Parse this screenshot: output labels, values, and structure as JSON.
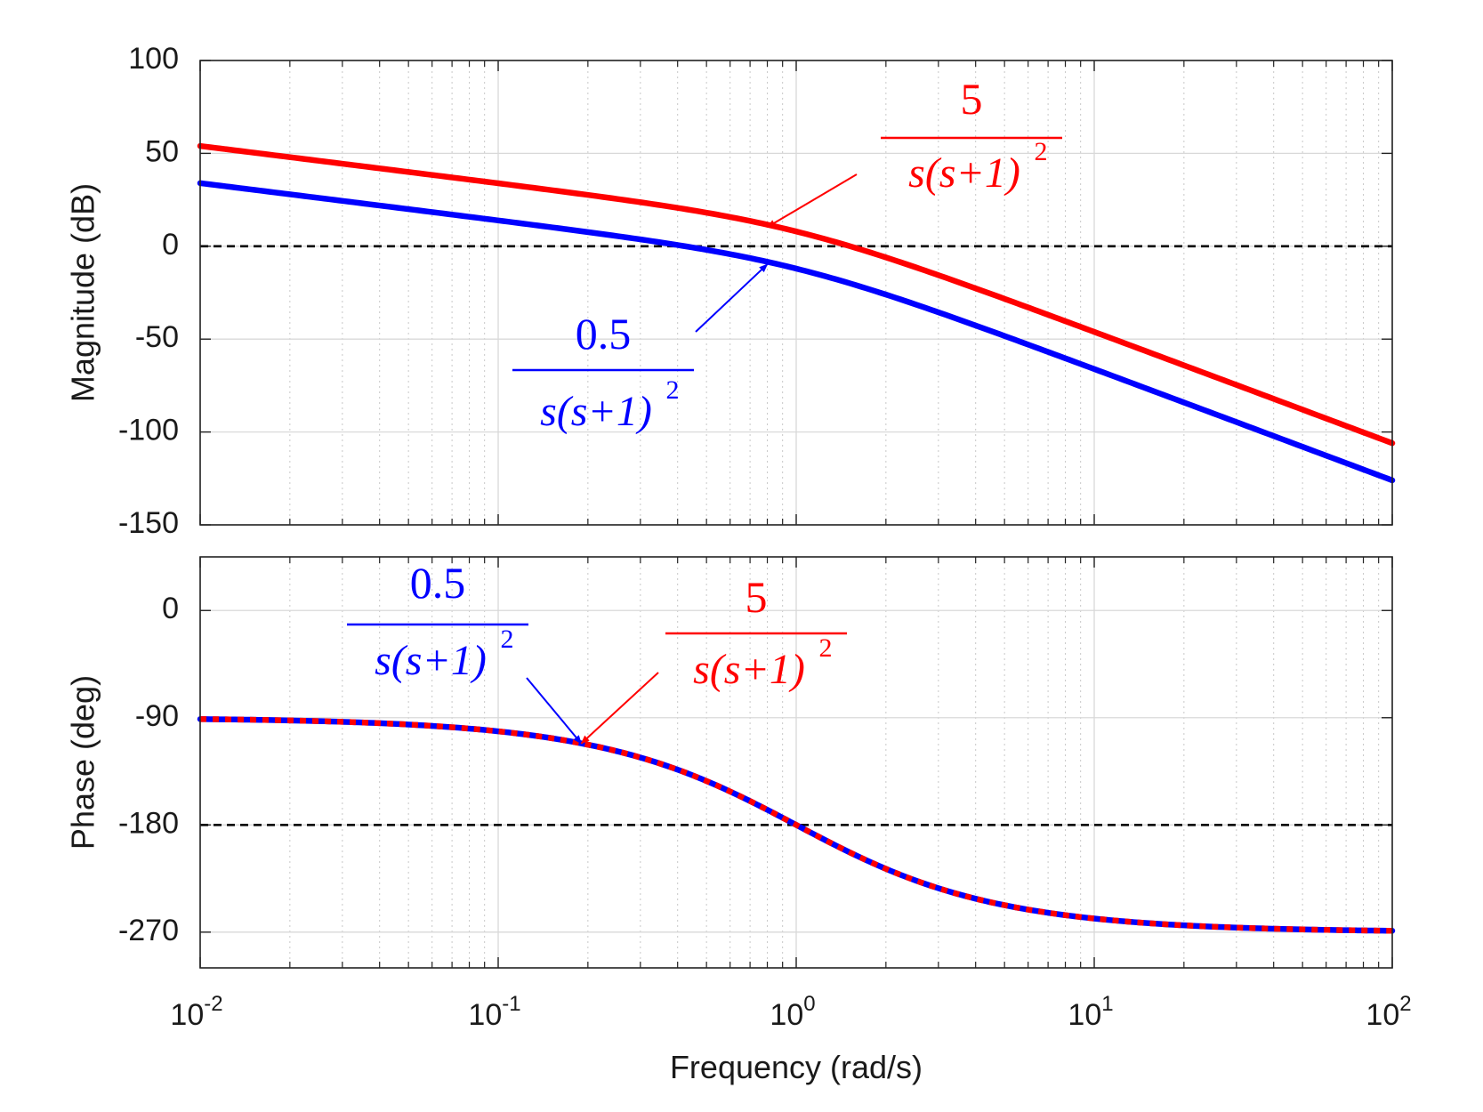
{
  "chart_data": {
    "type": "line",
    "subtype": "bode",
    "xlabel": "Frequency  (rad/s)",
    "xscale": "log",
    "xlim": [
      0.01,
      100
    ],
    "x_tick_labels": [
      {
        "base": "10",
        "exp": "-2"
      },
      {
        "base": "10",
        "exp": "-1"
      },
      {
        "base": "10",
        "exp": "0"
      },
      {
        "base": "10",
        "exp": "1"
      },
      {
        "base": "10",
        "exp": "2"
      }
    ],
    "grid": true,
    "colors": {
      "red": "#ff0000",
      "blue": "#0000ff",
      "reference": "#000000"
    },
    "series": [
      {
        "name": "5 / s(s+1)^2",
        "color": "#ff0000",
        "gain": 5
      },
      {
        "name": "0.5 / s(s+1)^2",
        "color": "#0000ff",
        "gain": 0.5
      }
    ],
    "panels": [
      {
        "id": "magnitude",
        "ylabel": "Magnitude (dB)",
        "ylim": [
          -150,
          100
        ],
        "yticks": [
          "100",
          "50",
          "0",
          "-50",
          "-100",
          "-150"
        ],
        "reference_line": 0,
        "x": [
          0.01,
          0.02,
          0.05,
          0.1,
          0.2,
          0.5,
          1,
          2,
          5,
          10,
          20,
          50,
          100
        ],
        "series_values": [
          [
            53.98,
            47.95,
            39.96,
            33.89,
            27.62,
            18.06,
            7.96,
            -4.01,
            -20.36,
            -32.08,
            -44.09,
            -60.01,
            -106.0
          ],
          [
            33.98,
            27.95,
            19.96,
            13.89,
            7.62,
            -1.94,
            -12.04,
            -24.01,
            -40.36,
            -52.08,
            -64.09,
            -80.01,
            -126.0
          ]
        ]
      },
      {
        "id": "phase",
        "ylabel": "Phase (deg)",
        "ylim": [
          -300,
          45
        ],
        "yticks": [
          "0",
          "-90",
          "-180",
          "-270"
        ],
        "reference_line": -180,
        "x": [
          0.01,
          0.02,
          0.05,
          0.1,
          0.2,
          0.5,
          1,
          2,
          5,
          10,
          20,
          50,
          100
        ],
        "series_values": [
          [
            -91.1,
            -92.3,
            -95.7,
            -101.4,
            -112.6,
            -143.1,
            -180.0,
            -216.9,
            -247.4,
            -258.6,
            -264.3,
            -267.7,
            -268.9
          ],
          [
            -91.1,
            -92.3,
            -95.7,
            -101.4,
            -112.6,
            -143.1,
            -180.0,
            -216.9,
            -247.4,
            -258.6,
            -264.3,
            -267.7,
            -268.9
          ]
        ]
      }
    ],
    "annotations": [
      {
        "panel": "magnitude",
        "series": 0,
        "numerator": "5",
        "denominator": "s(s+1)",
        "exponent": "2",
        "color": "#ff0000",
        "points_to": [
          0.8,
          10.3
        ]
      },
      {
        "panel": "magnitude",
        "series": 1,
        "numerator": "0.5",
        "denominator": "s(s+1)",
        "exponent": "2",
        "color": "#0000ff",
        "points_to": [
          0.8,
          -9.7
        ]
      },
      {
        "panel": "phase",
        "series": 1,
        "numerator": "0.5",
        "denominator": "s(s+1)",
        "exponent": "2",
        "color": "#0000ff",
        "points_to": [
          0.19,
          -111.6
        ]
      },
      {
        "panel": "phase",
        "series": 0,
        "numerator": "5",
        "denominator": "s(s+1)",
        "exponent": "2",
        "color": "#ff0000",
        "points_to": [
          0.19,
          -111.6
        ]
      }
    ]
  }
}
